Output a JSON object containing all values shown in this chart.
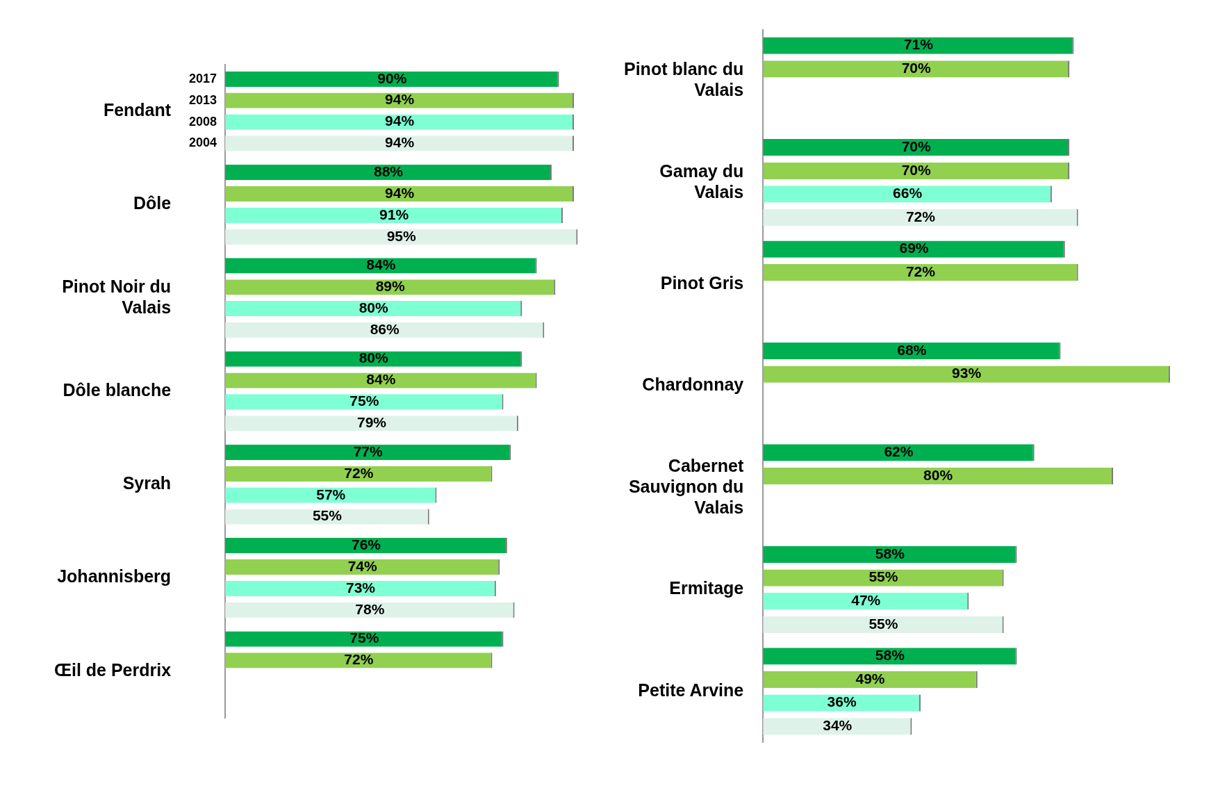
{
  "chart_data": [
    {
      "type": "bar",
      "orientation": "horizontal",
      "categories": [
        "Fendant",
        "Dôle",
        "Pinot Noir du Valais",
        "Dôle blanche",
        "Syrah",
        "Johannisberg",
        "Œil de Perdrix"
      ],
      "series": [
        {
          "name": "2017",
          "color": "#00b050",
          "values": [
            90,
            88,
            84,
            80,
            77,
            76,
            75
          ],
          "value_labels": [
            "90%",
            "88%",
            "84%",
            "80%",
            "77%",
            "76%",
            "75%"
          ]
        },
        {
          "name": "2013",
          "color": "#92d050",
          "values": [
            94,
            94,
            89,
            84,
            72,
            74,
            72
          ],
          "value_labels": [
            "94%",
            "94%",
            "89%",
            "84%",
            "72%",
            "74%",
            "72%"
          ]
        },
        {
          "name": "2008",
          "color": "#7fffd4",
          "values": [
            94,
            91,
            80,
            75,
            57,
            73,
            null
          ],
          "value_labels": [
            "94%",
            "91%",
            "80%",
            "75%",
            "57%",
            "73%",
            null
          ]
        },
        {
          "name": "2004",
          "color": "#dff2ea",
          "values": [
            94,
            95,
            86,
            79,
            55,
            78,
            null
          ],
          "value_labels": [
            "94%",
            "95%",
            "86%",
            "79%",
            "55%",
            "78%",
            null
          ]
        }
      ]
    },
    {
      "type": "bar",
      "orientation": "horizontal",
      "categories": [
        "Pinot blanc du Valais",
        "Gamay du Valais",
        "Pinot Gris",
        "Chardonnay",
        "Cabernet Sauvignon du Valais",
        "Ermitage",
        "Petite Arvine"
      ],
      "series": [
        {
          "color": "#00b050",
          "values": [
            71,
            70,
            69,
            68,
            62,
            58,
            58
          ],
          "value_labels": [
            "71%",
            "70%",
            "69%",
            "68%",
            "62%",
            "58%",
            "58%"
          ]
        },
        {
          "color": "#92d050",
          "values": [
            70,
            70,
            72,
            93,
            80,
            55,
            49
          ],
          "value_labels": [
            "70%",
            "70%",
            "72%",
            "93%",
            "80%",
            "55%",
            "49%"
          ]
        },
        {
          "color": "#7fffd4",
          "values": [
            null,
            66,
            null,
            null,
            null,
            47,
            36
          ],
          "value_labels": [
            null,
            "66%",
            null,
            null,
            null,
            "47%",
            "36%"
          ]
        },
        {
          "color": "#dff2ea",
          "values": [
            null,
            72,
            null,
            null,
            null,
            55,
            34
          ],
          "value_labels": [
            null,
            "72%",
            null,
            null,
            null,
            "55%",
            "34%"
          ]
        }
      ]
    }
  ]
}
